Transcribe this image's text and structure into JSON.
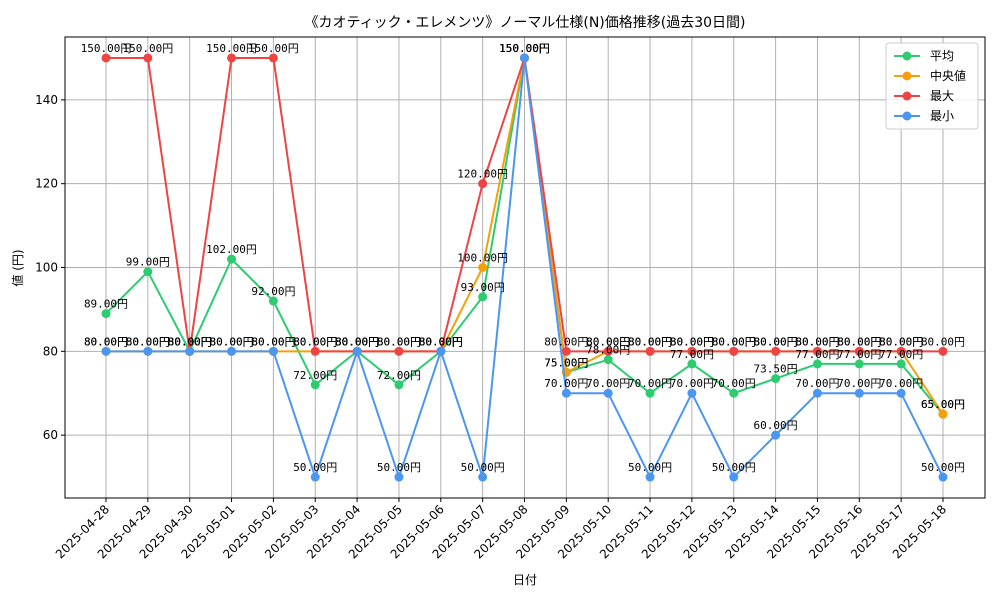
{
  "chart_data": {
    "type": "line",
    "title": "《カオティック・エレメンツ》ノーマル仕様(N)価格推移(過去30日間)",
    "xlabel": "日付",
    "ylabel": "値 (円)",
    "ylim": [
      45,
      155
    ],
    "yticks": [
      60,
      80,
      100,
      120,
      140
    ],
    "grid": true,
    "legend_position": "top-right",
    "value_suffix": "円",
    "categories": [
      "2025-04-28",
      "2025-04-29",
      "2025-04-30",
      "2025-05-01",
      "2025-05-02",
      "2025-05-03",
      "2025-05-04",
      "2025-05-05",
      "2025-05-06",
      "2025-05-07",
      "2025-05-08",
      "2025-05-09",
      "2025-05-10",
      "2025-05-11",
      "2025-05-12",
      "2025-05-13",
      "2025-05-14",
      "2025-05-15",
      "2025-05-16",
      "2025-05-17",
      "2025-05-18"
    ],
    "series": [
      {
        "name": "平均",
        "color": "#2ecc71",
        "values": [
          89,
          99,
          80,
          102,
          92,
          72,
          80,
          72,
          80,
          93,
          150,
          75,
          78,
          70,
          77,
          70,
          73.5,
          77,
          77,
          77,
          65
        ]
      },
      {
        "name": "中央値",
        "color": "#f5a00a",
        "values": [
          80,
          80,
          80,
          80,
          80,
          80,
          80,
          80,
          80,
          100,
          150,
          75,
          80,
          80,
          80,
          80,
          80,
          80,
          80,
          80,
          65
        ]
      },
      {
        "name": "最大",
        "color": "#ef4444",
        "values": [
          150,
          150,
          80,
          150,
          150,
          80,
          80,
          80,
          80,
          120,
          150,
          80,
          80,
          80,
          80,
          80,
          80,
          80,
          80,
          80,
          80
        ]
      },
      {
        "name": "最小",
        "color": "#4a96f0",
        "values": [
          80,
          80,
          80,
          80,
          80,
          50,
          80,
          50,
          80,
          50,
          150,
          70,
          70,
          50,
          70,
          50,
          60,
          70,
          70,
          70,
          50
        ]
      }
    ]
  }
}
